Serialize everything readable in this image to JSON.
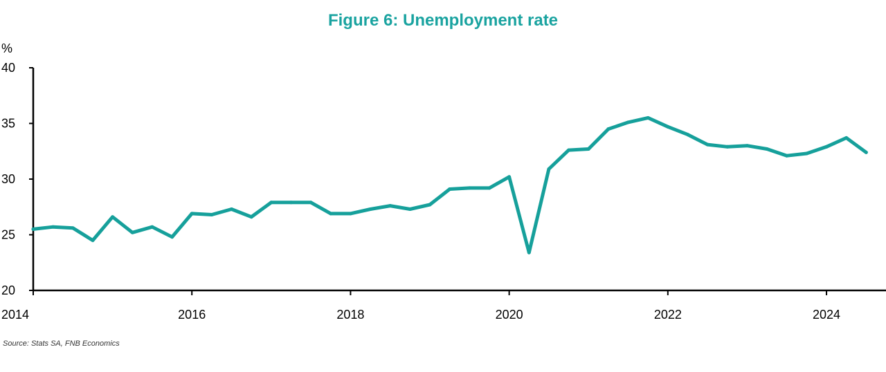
{
  "title": "Figure 6: Unemployment rate",
  "source": "Source: Stats SA, FNB Economics",
  "colors": {
    "title": "#1aa3a0",
    "line": "#16a09b",
    "axis": "#000000"
  },
  "chart_data": {
    "type": "line",
    "title": "Figure 6: Unemployment rate",
    "xlabel": "",
    "ylabel": "%",
    "xlim": [
      2014,
      2024.75
    ],
    "ylim": [
      20,
      40
    ],
    "x_ticks": [
      "2014",
      "2016",
      "2018",
      "2020",
      "2022",
      "2024"
    ],
    "y_ticks": [
      "20",
      "25",
      "30",
      "35",
      "40"
    ],
    "grid": false,
    "legend": "none",
    "series": [
      {
        "x": [
          2014.0,
          2014.25,
          2014.5,
          2014.75,
          2015.0,
          2015.25,
          2015.5,
          2015.75,
          2016.0,
          2016.25,
          2016.5,
          2016.75,
          2017.0,
          2017.25,
          2017.5,
          2017.75,
          2018.0,
          2018.25,
          2018.5,
          2018.75,
          2019.0,
          2019.25,
          2019.5,
          2019.75,
          2020.0,
          2020.25,
          2020.5,
          2020.75,
          2021.0,
          2021.25,
          2021.5,
          2021.75,
          2022.0,
          2022.25,
          2022.5,
          2022.75,
          2023.0,
          2023.25,
          2023.5,
          2023.75,
          2024.0,
          2024.25,
          2024.5
        ],
        "values": [
          25.5,
          25.7,
          25.6,
          24.5,
          26.6,
          25.2,
          25.7,
          24.8,
          26.9,
          26.8,
          27.3,
          26.6,
          27.9,
          27.9,
          27.9,
          26.9,
          26.9,
          27.3,
          27.6,
          27.3,
          27.7,
          29.1,
          29.2,
          29.2,
          30.2,
          23.4,
          30.9,
          32.6,
          32.7,
          34.5,
          35.1,
          35.5,
          34.7,
          34.0,
          33.1,
          32.9,
          33.0,
          32.7,
          32.1,
          32.3,
          32.9,
          33.7,
          32.4
        ]
      }
    ]
  }
}
